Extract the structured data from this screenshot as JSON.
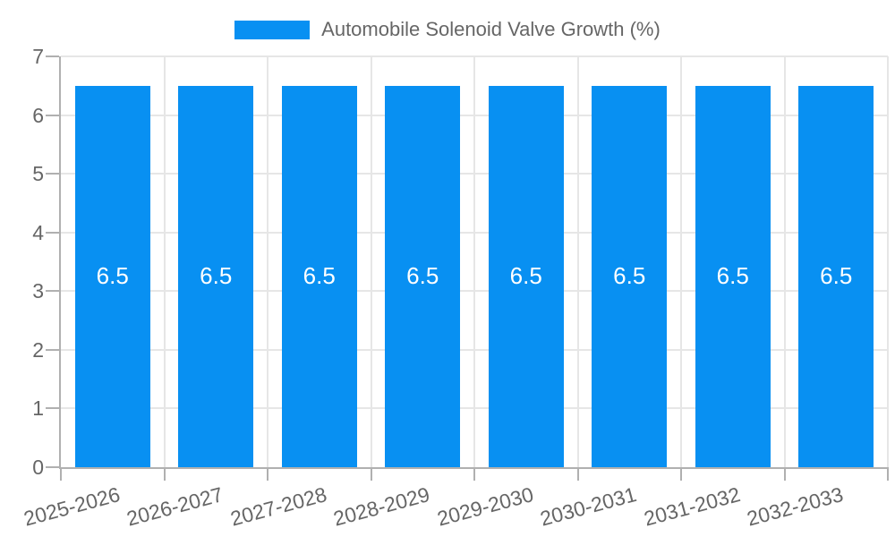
{
  "chart_data": {
    "type": "bar",
    "title": "Automobile Solenoid Valve Growth (%)",
    "categories": [
      "2025-2026",
      "2026-2027",
      "2027-2028",
      "2028-2029",
      "2029-2030",
      "2030-2031",
      "2031-2032",
      "2032-2033"
    ],
    "series": [
      {
        "name": "Automobile Solenoid Valve Growth (%)",
        "values": [
          6.5,
          6.5,
          6.5,
          6.5,
          6.5,
          6.5,
          6.5,
          6.5
        ],
        "value_labels": [
          "6.5",
          "6.5",
          "6.5",
          "6.5",
          "6.5",
          "6.5",
          "6.5",
          "6.5"
        ]
      }
    ],
    "xlabel": "",
    "ylabel": "",
    "ylim": [
      0,
      7
    ],
    "yticks": [
      0,
      1,
      2,
      3,
      4,
      5,
      6,
      7
    ],
    "grid": true,
    "legend_position": "top-center",
    "x_label_rotation_deg": -15,
    "colors": {
      "bar": "#0890f2",
      "gridline": "#e6e6e6",
      "axis": "#b0b0b0",
      "tick": "#b0b0b0",
      "axis_label": "#666666",
      "legend_label": "#666666",
      "value_label": "#ffffff",
      "background": "#ffffff"
    }
  }
}
